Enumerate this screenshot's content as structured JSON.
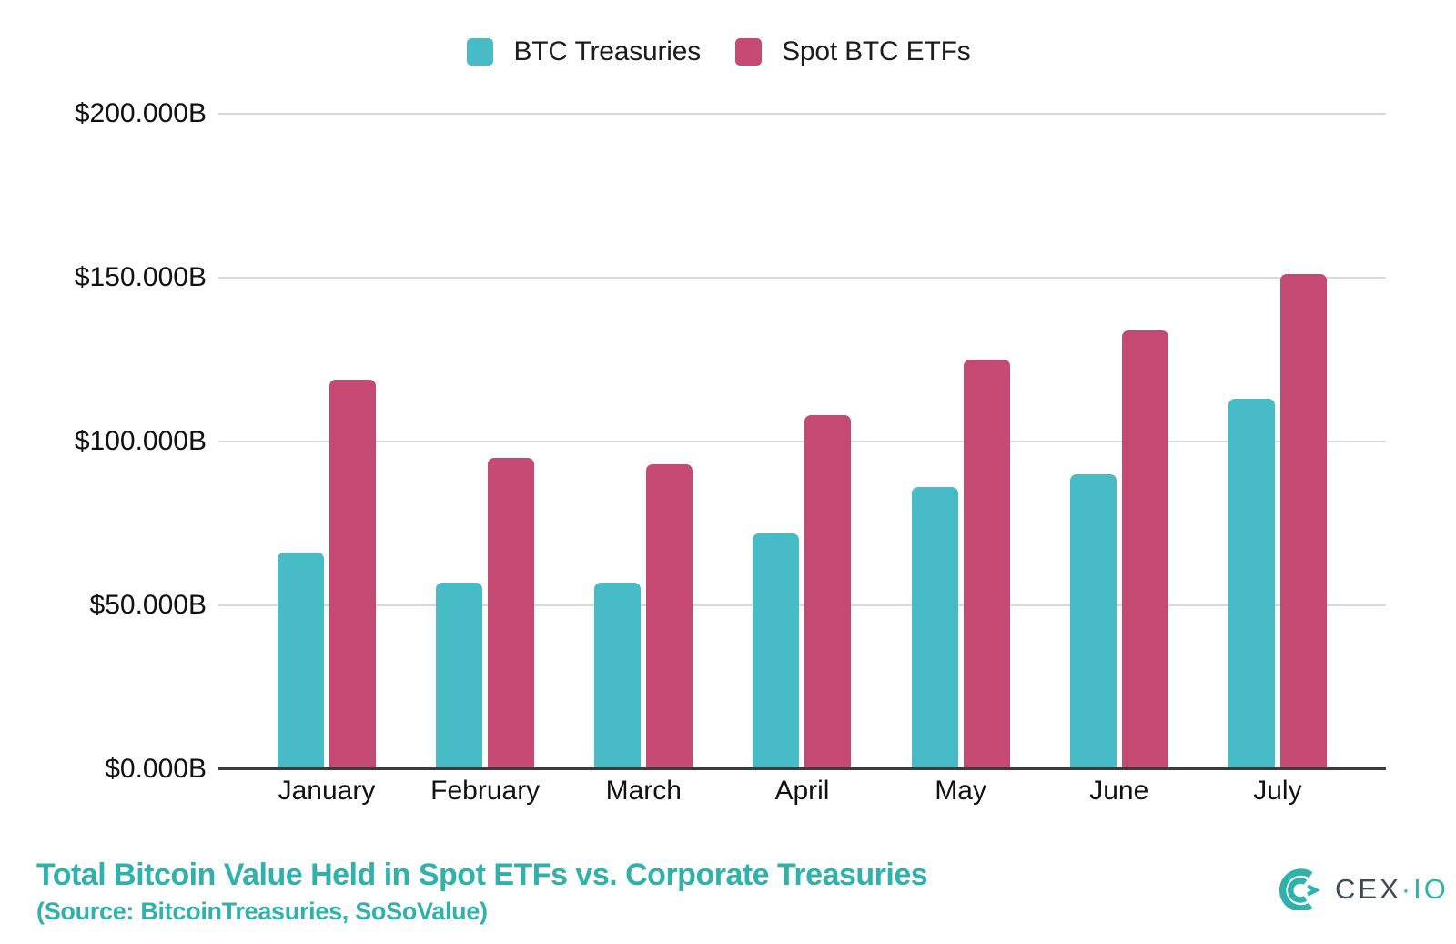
{
  "colors": {
    "brand_teal": "#2FB2AC",
    "treasuries_teal": "#48BCC6",
    "etf_pink": "#C44973",
    "axis_dark": "#3c3c3c",
    "gridline_gray": "#d9d9d9",
    "logo_text_dark": "#3D4B55"
  },
  "legend": {
    "items": [
      {
        "label": "BTC Treasuries",
        "color": "#48BCC6"
      },
      {
        "label": "Spot BTC ETFs",
        "color": "#C44973"
      }
    ]
  },
  "chart_data": {
    "type": "bar",
    "title": "Total Bitcoin Value Held in Spot ETFs vs. Corporate Treasuries",
    "subtitle": "(Source: BitcoinTreasuries, SoSoValue)",
    "categories": [
      "January",
      "February",
      "March",
      "April",
      "May",
      "June",
      "July"
    ],
    "series": [
      {
        "name": "BTC Treasuries",
        "color": "#48BCC6",
        "values": [
          66,
          57,
          57,
          72,
          86,
          90,
          113
        ]
      },
      {
        "name": "Spot BTC ETFs",
        "color": "#C44973",
        "values": [
          119,
          95,
          93,
          108,
          125,
          134,
          151
        ]
      }
    ],
    "unit": "billions USD",
    "ylim": [
      0,
      200
    ],
    "yticks": [
      "$200.000B",
      "$150.000B",
      "$100.000B",
      "$50.000B",
      "$0.000B"
    ],
    "grid": true,
    "legend_position": "top"
  },
  "footer": {
    "title": "Total Bitcoin Value Held in Spot ETFs vs. Corporate Treasuries",
    "source": "(Source: BitcoinTreasuries, SoSoValue)"
  },
  "logo": {
    "cex": "CEX",
    "separator": "·",
    "io": "IO"
  }
}
